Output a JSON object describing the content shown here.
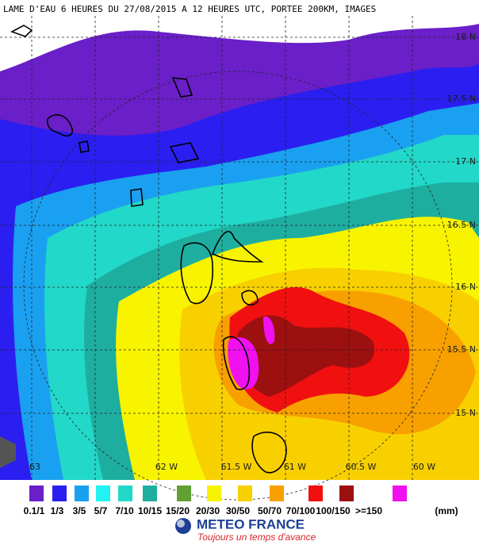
{
  "title": "LAME D'EAU 6 HEURES DU 27/08/2015 A 12 HEURES UTC, PORTEE 200KM, IMAGES",
  "latitude_labels": [
    "18 N",
    "17.5 N",
    "17 N",
    "16.5 N",
    "16 N",
    "15.5 N",
    "15 N"
  ],
  "longitude_labels": [
    "63",
    "62 W",
    "61.5 W",
    "61 W",
    "60.5 W",
    "60 W"
  ],
  "legend": {
    "items": [
      {
        "label": "0.1/1",
        "color": "#6a1fc8"
      },
      {
        "label": "1/3",
        "color": "#2a1ff0"
      },
      {
        "label": "3/5",
        "color": "#1aa0f0"
      },
      {
        "label": "5/7",
        "color": "#22f2f2"
      },
      {
        "label": "7/10",
        "color": "#22d8c8"
      },
      {
        "label": "10/15",
        "color": "#1eaea0"
      },
      {
        "label": "15/20",
        "color": "#62a034"
      },
      {
        "label": "20/30",
        "color": "#f8f400"
      },
      {
        "label": "30/50",
        "color": "#f8d000"
      },
      {
        "label": "50/70",
        "color": "#f8a000"
      },
      {
        "label": "70/100",
        "color": "#f01010"
      },
      {
        "label": "100/150",
        "color": "#9c1010"
      },
      {
        "label": ">=150",
        "color": "#f010f0"
      }
    ],
    "unit": "(mm)"
  },
  "logo": {
    "name": "METEO FRANCE",
    "tagline": "Toujours un temps d'avance"
  }
}
